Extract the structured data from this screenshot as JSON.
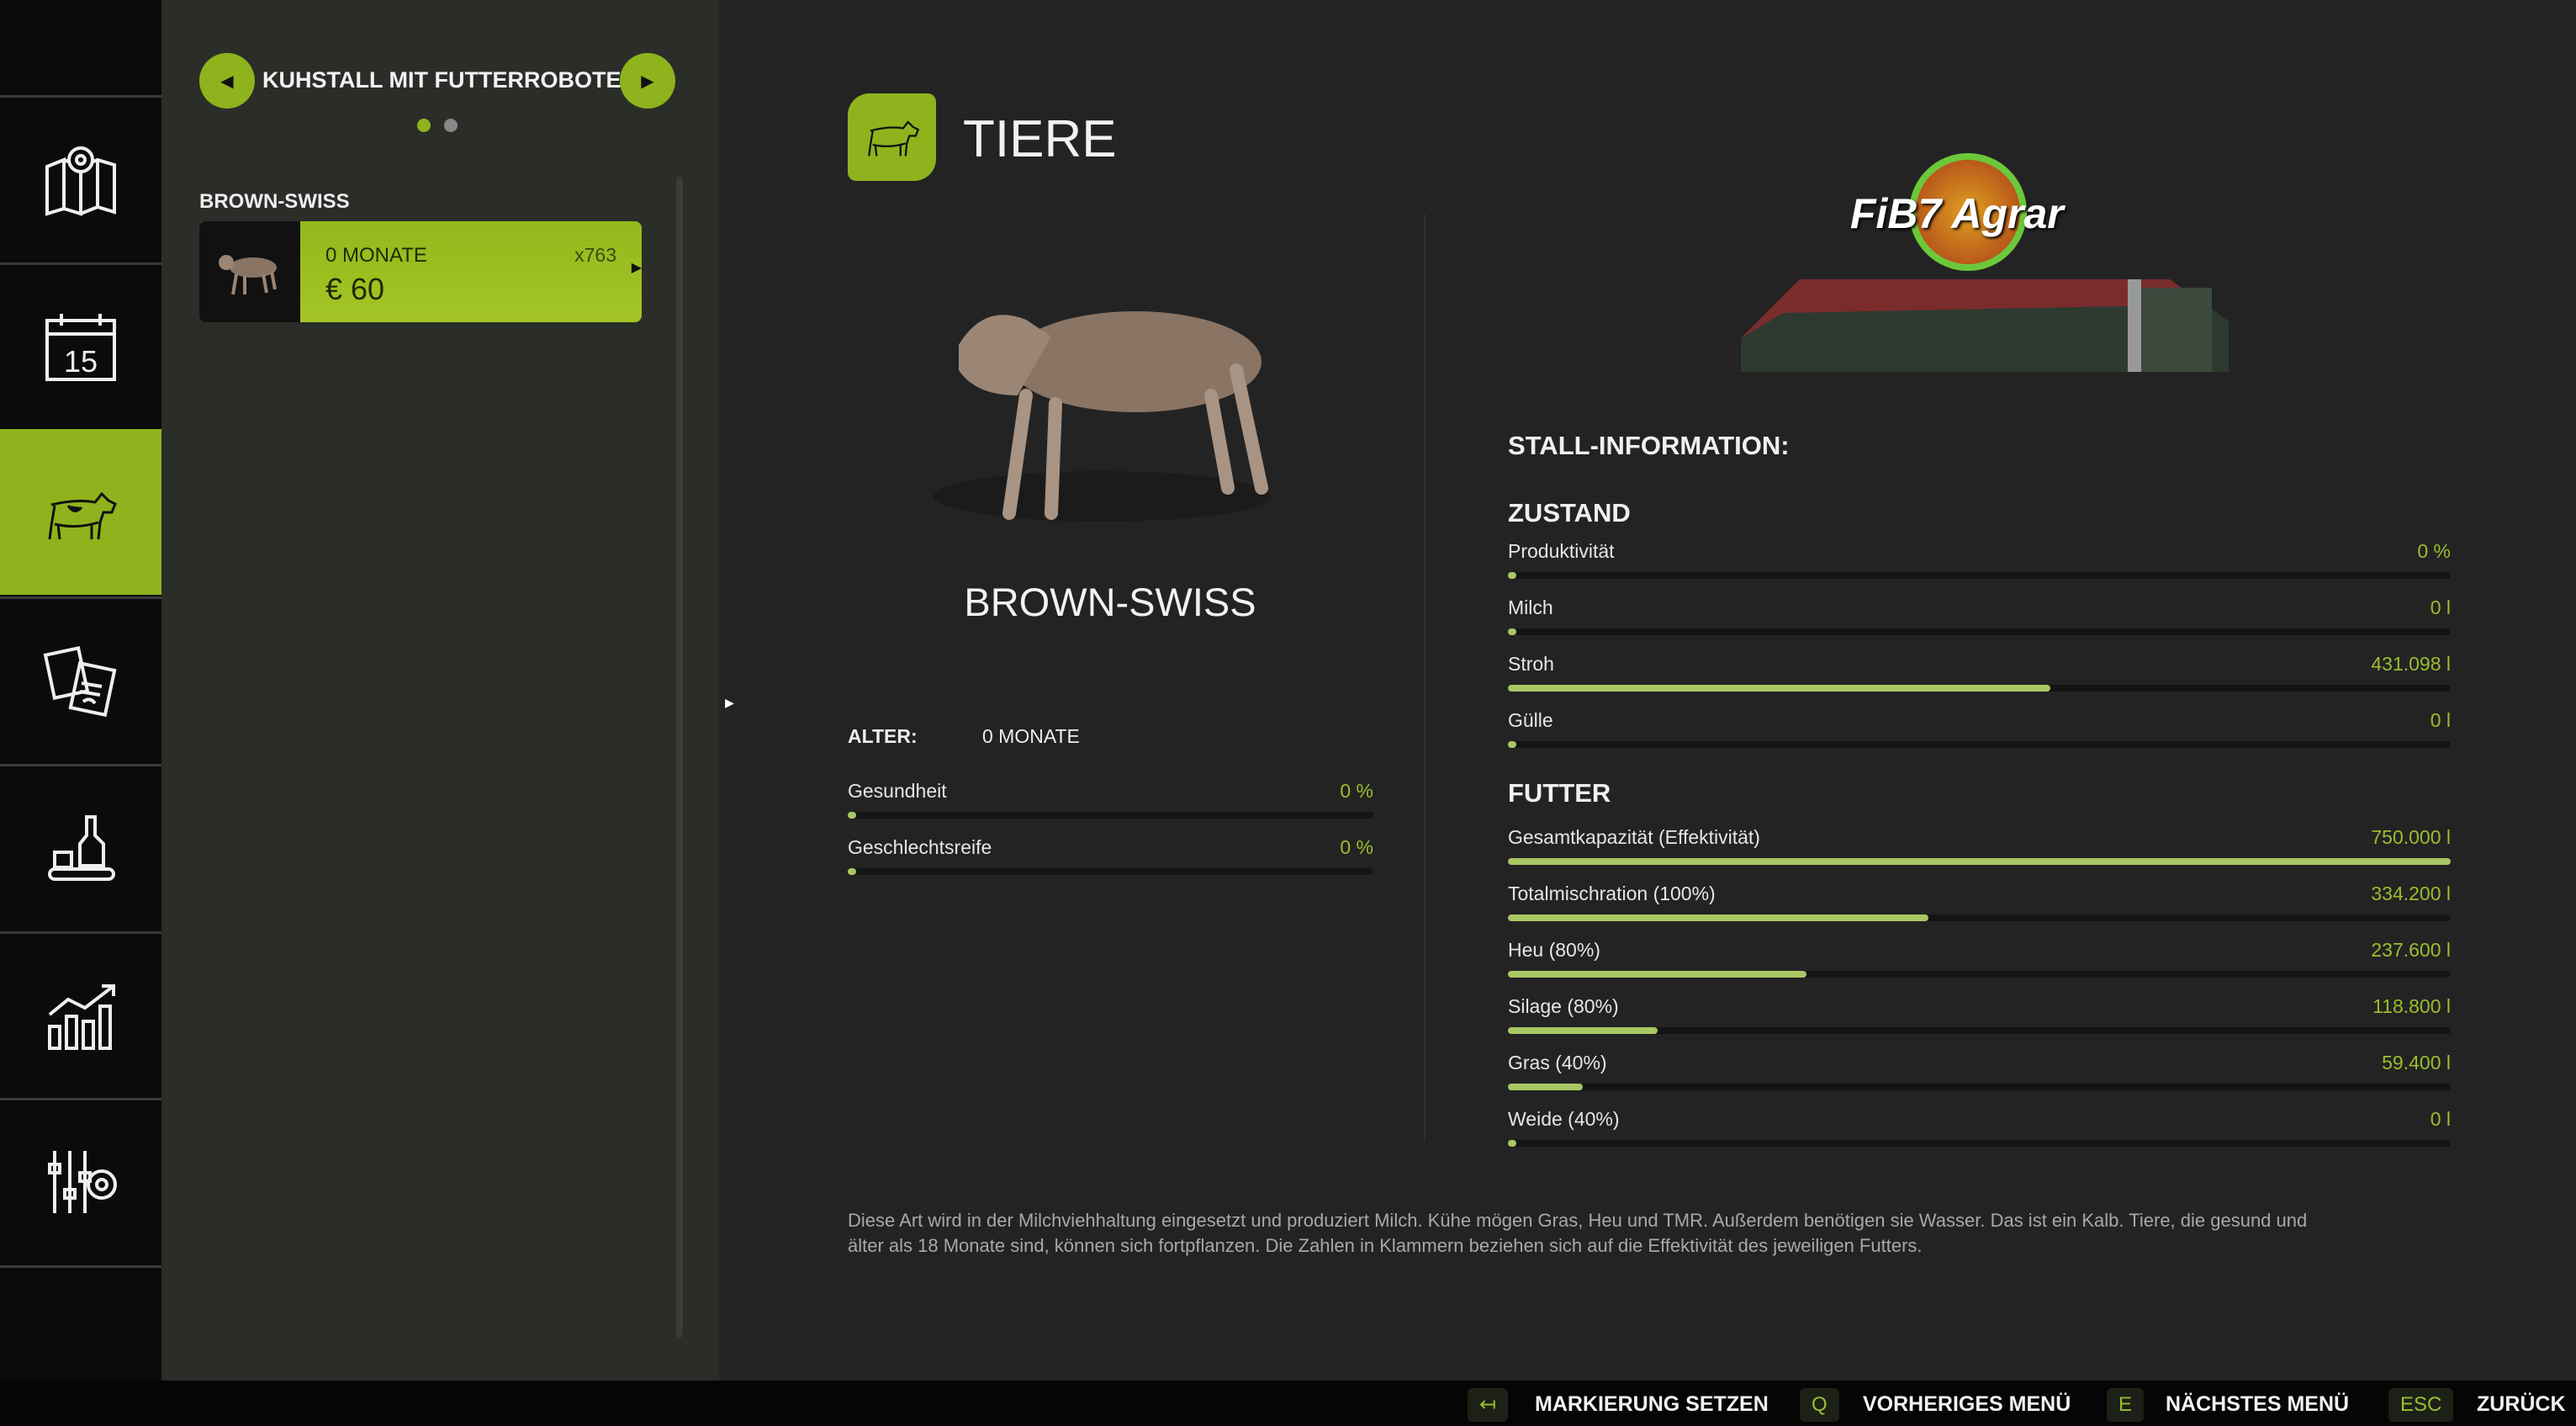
{
  "nav": {
    "items": [
      {
        "icon": "map-icon"
      },
      {
        "icon": "calendar-icon",
        "label": "15"
      },
      {
        "icon": "cow-icon",
        "active": true
      },
      {
        "icon": "contracts-icon"
      },
      {
        "icon": "production-icon"
      },
      {
        "icon": "statistics-icon"
      },
      {
        "icon": "settings-icon"
      }
    ]
  },
  "panel": {
    "title": "KUHSTALL MIT FUTTERROBOTER",
    "pages": 2,
    "current_page": 1,
    "group": "BROWN-SWISS",
    "card": {
      "age": "0 MONATE",
      "count": "x763",
      "price": "€ 60"
    }
  },
  "header": {
    "title": "TIERE"
  },
  "animal": {
    "name": "BROWN-SWISS",
    "age_label": "ALTER:",
    "age_value": "0 MONATE",
    "stats": [
      {
        "label": "Gesundheit",
        "value": "0 %",
        "fraction": 0
      },
      {
        "label": "Geschlechtsreife",
        "value": "0 %",
        "fraction": 0
      }
    ]
  },
  "stall": {
    "logo": "FiB7 Agrar",
    "title": "STALL-INFORMATION:",
    "zustand_title": "ZUSTAND",
    "zustand": [
      {
        "label": "Produktivität",
        "value": "0 %",
        "fraction": 0
      },
      {
        "label": "Milch",
        "value": "0 l",
        "fraction": 0
      },
      {
        "label": "Stroh",
        "value": "431.098 l",
        "fraction": 0.575
      },
      {
        "label": "Gülle",
        "value": "0 l",
        "fraction": 0
      }
    ],
    "futter_title": "FUTTER",
    "futter": [
      {
        "label": "Gesamtkapazität (Effektivität)",
        "value": "750.000 l",
        "fraction": 1
      },
      {
        "label": "Totalmischration (100%)",
        "value": "334.200 l",
        "fraction": 0.4456
      },
      {
        "label": "Heu (80%)",
        "value": "237.600 l",
        "fraction": 0.3168
      },
      {
        "label": "Silage (80%)",
        "value": "118.800 l",
        "fraction": 0.1584
      },
      {
        "label": "Gras (40%)",
        "value": "59.400 l",
        "fraction": 0.0792
      },
      {
        "label": "Weide (40%)",
        "value": "0 l",
        "fraction": 0
      }
    ]
  },
  "description": "Diese Art wird in der Milchviehhaltung eingesetzt und produziert Milch. Kühe mögen Gras, Heu und TMR. Außerdem benötigen sie Wasser. Das ist ein Kalb. Tiere, die gesund und älter als 18 Monate sind, können sich fortpflanzen. Die Zahlen in Klammern beziehen sich auf die Effektivität des jeweiligen Futters.",
  "footer": [
    {
      "key": "↤",
      "label": "MARKIERUNG SETZEN"
    },
    {
      "key": "Q",
      "label": "VORHERIGES MENÜ"
    },
    {
      "key": "E",
      "label": "NÄCHSTES MENÜ"
    },
    {
      "key": "ESC",
      "label": "ZURÜCK"
    }
  ],
  "colors": {
    "accent": "#8fb31c",
    "bar": "#a9c764",
    "value": "#9bbd2e"
  }
}
